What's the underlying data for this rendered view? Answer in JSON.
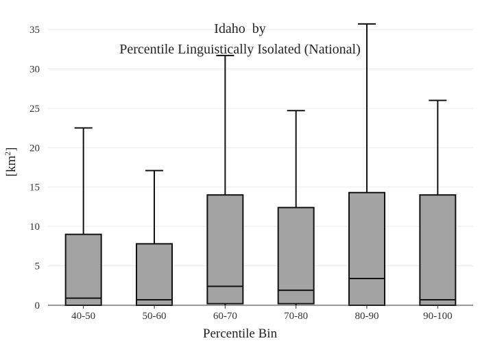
{
  "chart_data": {
    "type": "box",
    "title_line1": "Idaho  by",
    "title_line2": "Percentile Linguistically Isolated (National)",
    "xlabel": "Percentile Bin",
    "ylabel_prefix": "[km",
    "ylabel_sup": "2",
    "ylabel_suffix": "]",
    "ylim": [
      0,
      37
    ],
    "yticks": [
      0,
      5,
      10,
      15,
      20,
      25,
      30,
      35
    ],
    "grid": true,
    "box_color": "#a3a3a3",
    "line_color": "#111111",
    "categories": [
      "40-50",
      "50-60",
      "60-70",
      "70-80",
      "80-90",
      "90-100"
    ],
    "boxes": [
      {
        "category": "40-50",
        "whisker_low": 0,
        "q1": 0,
        "median": 0.9,
        "q3": 9.0,
        "whisker_high": 22.5
      },
      {
        "category": "50-60",
        "whisker_low": 0,
        "q1": 0,
        "median": 0.7,
        "q3": 7.8,
        "whisker_high": 17.1
      },
      {
        "category": "60-70",
        "whisker_low": 0,
        "q1": 0.2,
        "median": 2.4,
        "q3": 14.0,
        "whisker_high": 31.7
      },
      {
        "category": "70-80",
        "whisker_low": 0,
        "q1": 0.2,
        "median": 1.9,
        "q3": 12.4,
        "whisker_high": 24.7
      },
      {
        "category": "80-90",
        "whisker_low": 0,
        "q1": 0,
        "median": 3.4,
        "q3": 14.3,
        "whisker_high": 35.7
      },
      {
        "category": "90-100",
        "whisker_low": 0,
        "q1": 0,
        "median": 0.7,
        "q3": 14.0,
        "whisker_high": 26.0
      }
    ]
  }
}
